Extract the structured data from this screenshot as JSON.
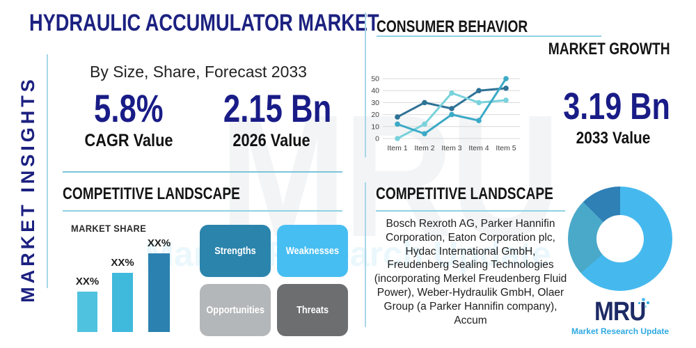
{
  "header": {
    "title": "HYDRAULIC ACCUMULATOR MARKET",
    "sidebar_label": "MARKET INSIGHTS"
  },
  "overview": {
    "subtitle": "By Size, Share, Forecast 2033",
    "stats": [
      {
        "value": "5.8%",
        "label": "CAGR Value"
      },
      {
        "value": "2.15 Bn",
        "label": "2026 Value"
      }
    ]
  },
  "growth": {
    "heading": "CONSUMER BEHAVIOR",
    "subheading": "MARKET GROWTH",
    "value": "3.19 Bn",
    "value_label": "2033 Value"
  },
  "competitive_left": {
    "heading": "COMPETITIVE LANDSCAPE",
    "chart_label": "MARKET SHARE",
    "swot": [
      {
        "label": "Strengths",
        "color": "#2a84ac"
      },
      {
        "label": "Weaknesses",
        "color": "#47bef2"
      },
      {
        "label": "Opportunities",
        "color": "#b4b7b9"
      },
      {
        "label": "Threats",
        "color": "#6c6e70"
      }
    ]
  },
  "competitive_right": {
    "heading": "COMPETITIVE LANDSCAPE",
    "companies": "Bosch Rexroth AG, Parker Hannifin Corporation, Eaton Corporation plc, Hydac International GmbH, Freudenberg Sealing Technologies (incorporating Merkel Freudenberg Fluid Power), Weber-Hydraulik GmbH, Olaer Group (a Parker Hannifin company), Accum"
  },
  "logo": {
    "name": "MRU",
    "tagline": "Market Research Update"
  },
  "watermark": {
    "text": "MRU",
    "subtext": "Market Research Update"
  },
  "colors": {
    "navy": "#1c2180",
    "value_navy": "#191c86",
    "underline_blue": "#8ed1e4",
    "divider_blue": "#7cc3db",
    "logo_navy": "#1d2b66",
    "logo_blue": "#2fa9e1"
  },
  "chart_data": [
    {
      "type": "line",
      "title": "Consumer behavior / market growth trend",
      "categories": [
        "Item 1",
        "Item 2",
        "Item 3",
        "Item 4",
        "Item 5"
      ],
      "series": [
        {
          "name": "series-1-dark-blue",
          "color": "#2e7296",
          "values": [
            18,
            30,
            25,
            40,
            42
          ]
        },
        {
          "name": "series-2-light-cyan",
          "color": "#79d2db",
          "values": [
            0,
            12,
            38,
            30,
            32
          ]
        },
        {
          "name": "series-3-teal",
          "color": "#3baac7",
          "values": [
            12,
            4,
            20,
            15,
            50
          ]
        }
      ],
      "ylim": [
        0,
        50
      ],
      "yticks": [
        0,
        10,
        20,
        30,
        40,
        50
      ],
      "grid": true,
      "legend": "none"
    },
    {
      "type": "bar",
      "title": "MARKET SHARE",
      "categories": [
        "bar-1",
        "bar-2",
        "bar-3"
      ],
      "value_labels": [
        "XX%",
        "XX%",
        "XX%"
      ],
      "relative_heights": [
        0.51,
        0.75,
        1.0
      ],
      "colors": [
        "#4fc2df",
        "#3fb9dc",
        "#2b81b0"
      ],
      "ylabel": "",
      "xlabel": ""
    },
    {
      "type": "donut",
      "title": "Competitive landscape share",
      "segments": [
        {
          "name": "segment-light-blue",
          "color": "#45b9ee",
          "pct": 63.5
        },
        {
          "name": "segment-teal",
          "color": "#4aa9c9",
          "pct": 24.0
        },
        {
          "name": "segment-dark-blue",
          "color": "#2f80b5",
          "pct": 12.5
        }
      ]
    }
  ]
}
